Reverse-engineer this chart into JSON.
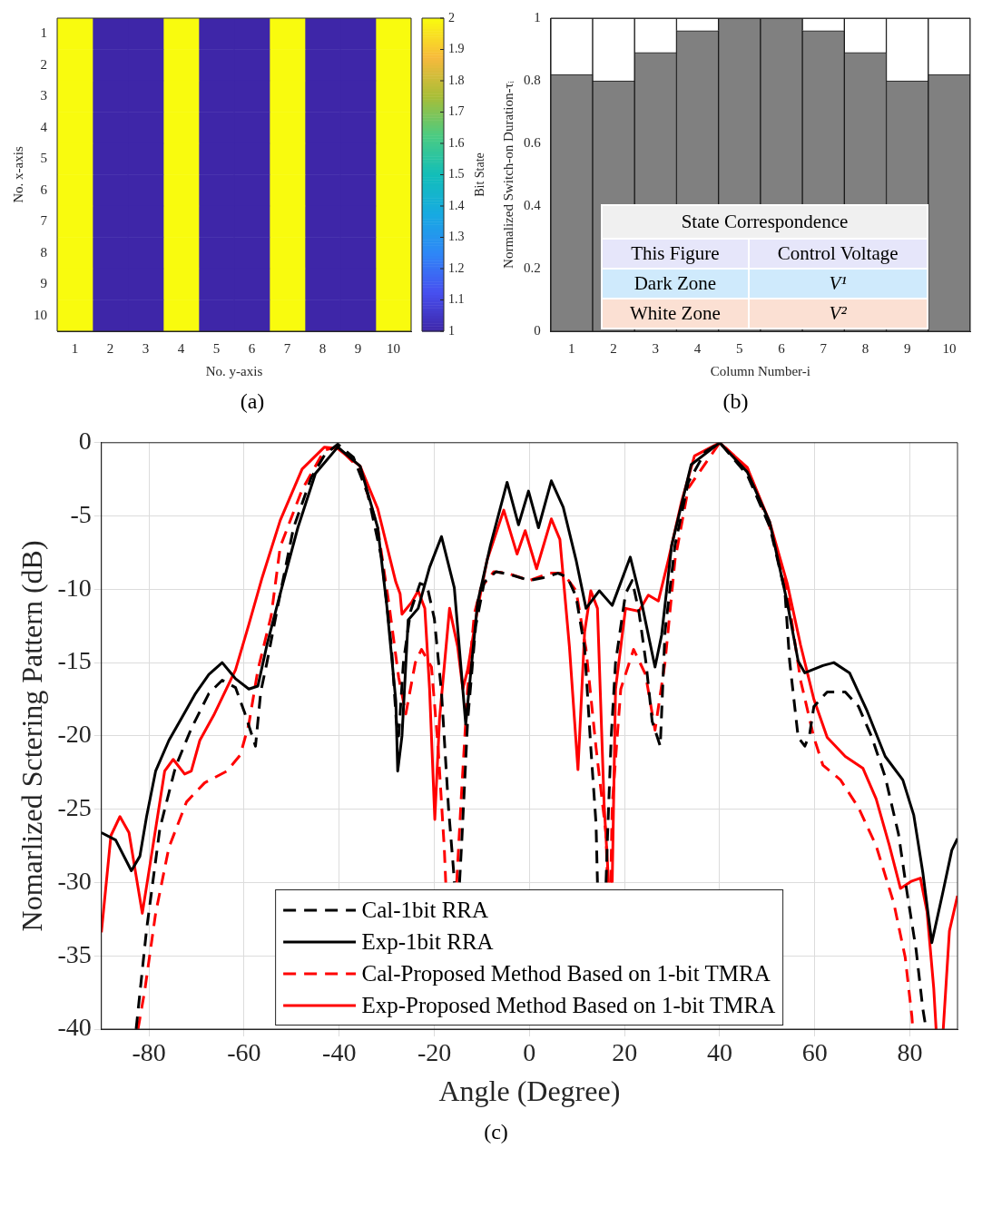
{
  "chart_data": [
    {
      "type": "heatmap",
      "xlabel": "No. y-axis",
      "ylabel": "No. x-axis",
      "clabel": "Bit State",
      "categories": [
        "1",
        "2",
        "3",
        "4",
        "5",
        "6",
        "7",
        "8",
        "9",
        "10"
      ],
      "y_categories": [
        "1",
        "2",
        "3",
        "4",
        "5",
        "6",
        "7",
        "8",
        "9",
        "10"
      ],
      "cells": [
        [
          2,
          1,
          1,
          2,
          1,
          1,
          2,
          1,
          1,
          2
        ],
        [
          2,
          1,
          1,
          2,
          1,
          1,
          2,
          1,
          1,
          2
        ],
        [
          2,
          1,
          1,
          2,
          1,
          1,
          2,
          1,
          1,
          2
        ],
        [
          2,
          1,
          1,
          2,
          1,
          1,
          2,
          1,
          1,
          2
        ],
        [
          2,
          1,
          1,
          2,
          1,
          1,
          2,
          1,
          1,
          2
        ],
        [
          2,
          1,
          1,
          2,
          1,
          1,
          2,
          1,
          1,
          2
        ],
        [
          2,
          1,
          1,
          2,
          1,
          1,
          2,
          1,
          1,
          2
        ],
        [
          2,
          1,
          1,
          2,
          1,
          1,
          2,
          1,
          1,
          2
        ],
        [
          2,
          1,
          1,
          2,
          1,
          1,
          2,
          1,
          1,
          2
        ],
        [
          2,
          1,
          1,
          2,
          1,
          1,
          2,
          1,
          1,
          2
        ]
      ],
      "clim": [
        1,
        2
      ],
      "cticks": [
        1,
        1.1,
        1.2,
        1.3,
        1.4,
        1.5,
        1.6,
        1.7,
        1.8,
        1.9,
        2
      ],
      "annotations": [
        "(a)"
      ]
    },
    {
      "type": "bar",
      "stacked": true,
      "xlabel": "Column Number-i",
      "ylabel": "Normalized Switch-on Duration-τᵢ",
      "categories": [
        "1",
        "2",
        "3",
        "4",
        "5",
        "6",
        "7",
        "8",
        "9",
        "10"
      ],
      "series": [
        {
          "color": "#808080",
          "values": [
            0.82,
            0.8,
            0.89,
            0.96,
            1,
            1,
            0.96,
            0.89,
            0.8,
            0.82
          ]
        },
        {
          "color": "#ffffff",
          "values": [
            0.18,
            0.2,
            0.11,
            0.04,
            0,
            0,
            0.04,
            0.11,
            0.2,
            0.18
          ]
        }
      ],
      "ylim": [
        0,
        1
      ],
      "yticks": [
        0,
        0.2,
        0.4,
        0.6,
        0.8,
        1
      ],
      "annotations": [
        "(b)",
        "State Correspondence",
        "This Figure",
        "Control Voltage",
        "Dark Zone",
        "V¹",
        "White Zone",
        "V²"
      ]
    },
    {
      "type": "line",
      "xlabel": "Angle (Degree)",
      "ylabel": "Nomarlized Sctering Pattern (dB)",
      "xlim": [
        -90,
        90
      ],
      "xticks": [
        -80,
        -60,
        -40,
        -20,
        0,
        20,
        40,
        60,
        80
      ],
      "ylim": [
        -40,
        0
      ],
      "yticks": [
        -40,
        -35,
        -30,
        -25,
        -20,
        -15,
        -10,
        -5,
        0
      ],
      "grid": true,
      "legend": "bottom",
      "marker": "none",
      "annotations": [
        "(c)"
      ],
      "series": [
        {
          "name": "Cal-1bit RRA",
          "color": "#000000",
          "line_style": "dashed",
          "x": [
            -82.7,
            -80.5,
            -77.7,
            -74.4,
            -71.1,
            -67.4,
            -64.6,
            -61.8,
            -59.9,
            -57.6,
            -56.5,
            -55.2,
            -52.4,
            -49.6,
            -45.9,
            -43,
            -40.3,
            -37,
            -34,
            -31,
            -29,
            -28,
            -27.5,
            -26.5,
            -25,
            -23,
            -21.5,
            -20,
            -18.5,
            -17,
            -16,
            -15.8,
            -15.2,
            -14.7,
            -14.2,
            -13,
            -11.3,
            -9.5,
            -7,
            -4,
            -1,
            0,
            3,
            6,
            8,
            9.8,
            11.6,
            12.9,
            14,
            14.3,
            15.2,
            16.1,
            16.4,
            17.2,
            18.1,
            20.2,
            21.6,
            23,
            24.5,
            25.8,
            27.5,
            28.5,
            30.6,
            33.4,
            37,
            40,
            45.8,
            50.5,
            53.7,
            54.7,
            55.6,
            56.5,
            57.9,
            58.9,
            59.8,
            62.6,
            66.4,
            69.2,
            72,
            74.8,
            77.6,
            79.4,
            81.3,
            82.7,
            83.4
          ],
          "values": [
            -40,
            -33.2,
            -26.3,
            -22.1,
            -19.5,
            -17.1,
            -16.2,
            -16.7,
            -18.4,
            -20.7,
            -17,
            -15,
            -10.3,
            -5.8,
            -2.4,
            -0.8,
            -0.1,
            -1,
            -3.5,
            -8,
            -14,
            -19,
            -20,
            -15,
            -11.5,
            -9.6,
            -9.8,
            -12,
            -17,
            -25,
            -29,
            -30,
            null,
            -30,
            -27,
            -19,
            -12.5,
            -9.5,
            -8.8,
            -9,
            -9.3,
            -9.4,
            -9.2,
            -8.9,
            -9.2,
            -10.5,
            -14,
            -20.8,
            -26,
            -30,
            null,
            -30,
            -27,
            -20,
            -15,
            -10.3,
            -9.4,
            -11.5,
            -15,
            -19,
            -20.7,
            -12.9,
            -7,
            -2.7,
            -0.6,
            0,
            -2.2,
            -5.7,
            -10.1,
            -14.9,
            -17.5,
            -20.1,
            -20.7,
            -19.9,
            -18,
            -17,
            -17,
            -18,
            -20.1,
            -22.8,
            -26.7,
            -30.7,
            -34.6,
            -38.6,
            -40
          ]
        },
        {
          "name": "Exp-1bit RRA",
          "color": "#000000",
          "line_style": "solid",
          "x": [
            -90,
            -87,
            -83.7,
            -81.9,
            -80.5,
            -78.6,
            -75.8,
            -73,
            -70.2,
            -67.4,
            -64.6,
            -61.8,
            -59,
            -57.1,
            -55.2,
            -52.4,
            -48.7,
            -45,
            -40.3,
            -35.6,
            -31.9,
            -30,
            -28.1,
            -27.7,
            -26.8,
            -25.5,
            -23.4,
            -21,
            -18.5,
            -15.8,
            -13.4,
            -10.9,
            -8.2,
            -4.7,
            -2.3,
            -0.2,
            1.9,
            4.6,
            7.1,
            9.8,
            11.9,
            14.7,
            17.4,
            21.2,
            23.7,
            26.4,
            27.8,
            29.9,
            34,
            40,
            45.8,
            50.5,
            54.2,
            56.5,
            57.9,
            61.7,
            64,
            67.3,
            71,
            74.8,
            78.5,
            80.8,
            82.7,
            84.6,
            86.9,
            88.8,
            90
          ],
          "values": [
            -26.6,
            -27.1,
            -29.2,
            -28.2,
            -25.5,
            -22.4,
            -20.3,
            -18.7,
            -17.1,
            -15.8,
            -15,
            -16.1,
            -16.8,
            -16.6,
            -13.8,
            -10.3,
            -5.8,
            -2.1,
            -0.3,
            -1.6,
            -5.8,
            -11.1,
            -17.6,
            -22.4,
            -20,
            -12.1,
            -11.3,
            -8.5,
            -6.4,
            -9.9,
            -19.2,
            -10.9,
            -7,
            -2.7,
            -5.6,
            -3.3,
            -5.8,
            -2.6,
            -4.4,
            -8,
            -11.3,
            -10.1,
            -11.1,
            -7.8,
            -11.1,
            -15.3,
            -13.1,
            -7,
            -1.5,
            0,
            -2,
            -5.4,
            -10.9,
            -14.9,
            -15.7,
            -15.2,
            -15,
            -15.7,
            -18.3,
            -21.4,
            -23,
            -25.4,
            -29.3,
            -34.1,
            -30.7,
            -27.8,
            -27
          ]
        },
        {
          "name": "Cal-Proposed Method Based on 1-bit TMRA",
          "color": "#ff0000",
          "line_style": "dashed",
          "x": [
            -82.3,
            -80.9,
            -78.6,
            -75.8,
            -72.1,
            -68.3,
            -63.6,
            -60.8,
            -59,
            -57.1,
            -54.3,
            -52.4,
            -47.8,
            -43.1,
            -40.3,
            -35.6,
            -31.9,
            -29.5,
            -27.5,
            -26,
            -24,
            -22.7,
            -20.6,
            -19.2,
            -17.9,
            -17.6,
            -16.5,
            -15.3,
            -14.3,
            -13,
            -11.6,
            -10.2,
            -7.5,
            -4.7,
            0,
            4.3,
            7.1,
            9.8,
            11.9,
            14,
            16.1,
            16.4,
            16.8,
            17.1,
            17.4,
            19.2,
            21.9,
            24.4,
            26.4,
            28.5,
            30.6,
            33.4,
            40,
            45.8,
            50.5,
            54.2,
            57,
            59.8,
            61.7,
            65.4,
            69.2,
            72.9,
            76.6,
            79,
            80.4,
            80.6
          ],
          "values": [
            -40,
            -37.4,
            -32.1,
            -27.6,
            -24.5,
            -23.2,
            -22.4,
            -21.3,
            -19.2,
            -15.5,
            -11.8,
            -7.1,
            -3.2,
            -0.5,
            -0.3,
            -1.8,
            -5.8,
            -11.1,
            -16,
            -18.5,
            -15,
            -14.1,
            -15.3,
            -20.8,
            -27.7,
            -30,
            null,
            -30,
            -24,
            -16.8,
            -11.7,
            -9.9,
            -8.8,
            -8.9,
            -9.4,
            -8.9,
            -8.9,
            -10.1,
            -14.1,
            -20.8,
            -26.7,
            -30,
            null,
            -30,
            -24.7,
            -16.8,
            -14.1,
            -15.8,
            -19.6,
            -15,
            -8,
            -3.1,
            0,
            -1.7,
            -5.7,
            -10.1,
            -16.2,
            -20.1,
            -22,
            -23,
            -24.9,
            -27.5,
            -31.4,
            -35.1,
            -39.1,
            -40
          ]
        },
        {
          "name": "Exp-Proposed Method Based on 1-bit TMRA",
          "color": "#ff0000",
          "line_style": "solid",
          "x": [
            -90,
            -88,
            -86.1,
            -84.2,
            -81.4,
            -79.5,
            -76.7,
            -74.9,
            -72.5,
            -71.1,
            -69.3,
            -66.4,
            -61.8,
            -59,
            -56.2,
            -52.4,
            -47.8,
            -43.1,
            -40.3,
            -35.6,
            -31.9,
            -28.1,
            -27.2,
            -26.8,
            -24.8,
            -23.4,
            -22,
            -21,
            -19.9,
            -18.9,
            -16.8,
            -15.1,
            -14,
            -13,
            -10.9,
            -8.9,
            -5.4,
            -2.6,
            -0.9,
            1.5,
            4.6,
            6.4,
            8.4,
            10.2,
            11.6,
            12.9,
            14.3,
            15.7,
            16.4,
            16.6,
            17,
            17.4,
            18.1,
            20.2,
            23,
            25,
            27.1,
            29.2,
            32,
            34.7,
            40,
            45.8,
            50.5,
            54.2,
            57,
            59.8,
            62.6,
            66.4,
            70.1,
            72.9,
            75.7,
            78,
            80.4,
            82.2,
            83.6,
            85,
            85.5,
            86.2,
            87,
            88.3,
            90
          ],
          "values": [
            -33.4,
            -26.8,
            -25.5,
            -26.6,
            -32.1,
            -28.2,
            -22.4,
            -21.6,
            -22.6,
            -22.4,
            -20.3,
            -18.6,
            -15.5,
            -12.4,
            -9.2,
            -5.3,
            -1.8,
            -0.3,
            -0.4,
            -1.6,
            -4.5,
            -9.5,
            -10.3,
            -11.7,
            -10.9,
            -10.1,
            -11.3,
            -16.8,
            -25.7,
            -18.8,
            -11.3,
            -13.9,
            -16.8,
            -15.5,
            -11.3,
            -8,
            -4.6,
            -7.6,
            -6,
            -8.6,
            -5.2,
            -6.6,
            -13.9,
            -22.3,
            -12.9,
            -10.1,
            -11.3,
            -24.7,
            -28.6,
            -30,
            null,
            -30,
            -16.8,
            -11.3,
            -11.5,
            -10.4,
            -10.8,
            -8,
            -4,
            -0.9,
            0,
            -1.7,
            -5.4,
            -9.6,
            -13.8,
            -17.5,
            -20.1,
            -21.4,
            -22.2,
            -24.3,
            -27.5,
            -30.4,
            -29.9,
            -29.7,
            -32,
            -37.2,
            -40,
            null,
            -40,
            -33.3,
            -30.9
          ]
        }
      ]
    }
  ]
}
